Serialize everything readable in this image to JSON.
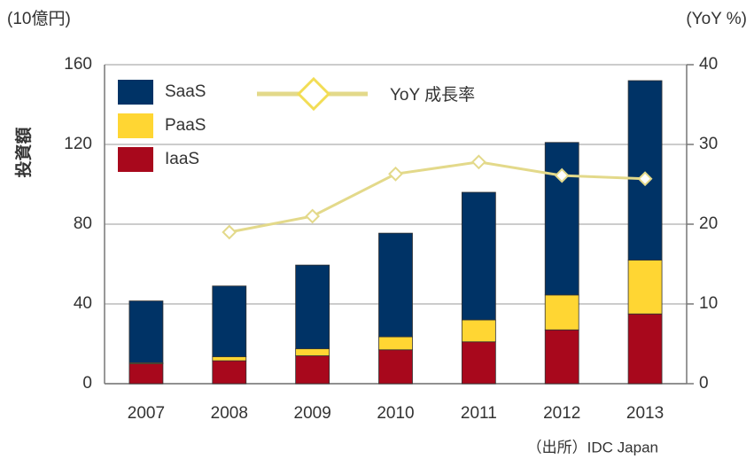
{
  "chart_data": {
    "type": "bar",
    "stacked": true,
    "y_unit_label": "(10億円)",
    "y2_unit_label": "(YoY %)",
    "ylabel": "投資額",
    "source": "（出所）IDC Japan",
    "categories": [
      "2007",
      "2008",
      "2009",
      "2010",
      "2011",
      "2012",
      "2013"
    ],
    "series": [
      {
        "name": "IaaS",
        "color": "#a8081c",
        "values": [
          10,
          11.5,
          14,
          17,
          21,
          27,
          35
        ]
      },
      {
        "name": "PaaS",
        "color": "#ffd633",
        "values": [
          0.5,
          2,
          3.5,
          6.5,
          11,
          17.5,
          27
        ]
      },
      {
        "name": "SaaS",
        "color": "#003366",
        "values": [
          31,
          35.5,
          42,
          52,
          64,
          76.5,
          90
        ]
      },
      {
        "name": "YoY 成長率",
        "type": "line",
        "axis": "y2",
        "color": "#e3d98a",
        "values": [
          null,
          19,
          21,
          26.3,
          27.8,
          26.1,
          25.7
        ]
      }
    ],
    "ylim": [
      0,
      160
    ],
    "yticks": [
      0,
      40,
      80,
      120,
      160
    ],
    "y2lim": [
      0,
      40
    ],
    "y2ticks": [
      0,
      10,
      20,
      30,
      40
    ],
    "grid": true,
    "legend": "top-left"
  }
}
